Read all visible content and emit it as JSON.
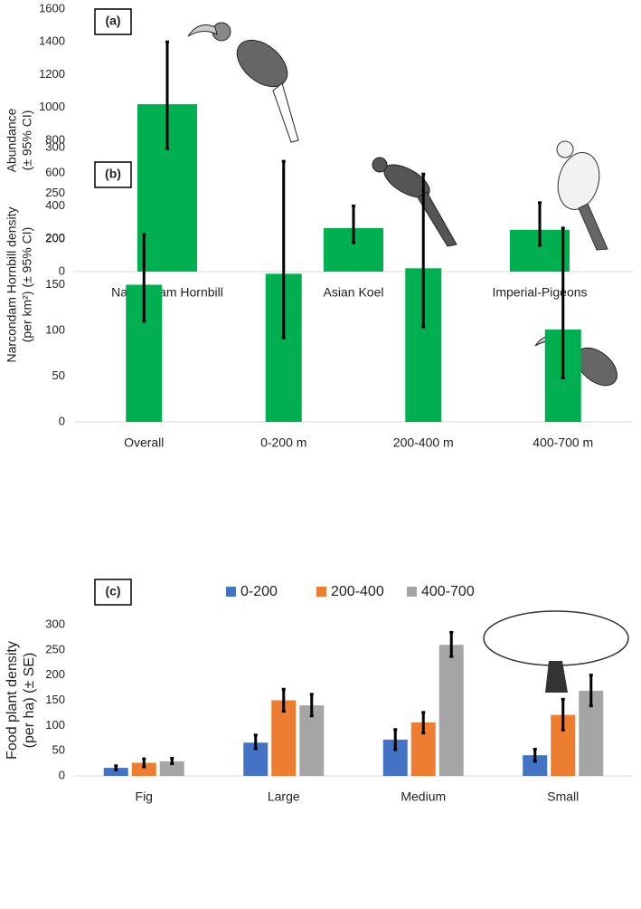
{
  "chart_data": [
    {
      "type": "bar",
      "panel": "(a)",
      "ylabel": [
        "Abundance",
        "(± 95% CI)"
      ],
      "categories": [
        "Narcondam Hornbill",
        "Asian Koel",
        "Imperial-Pigeons"
      ],
      "values": [
        1020,
        265,
        255
      ],
      "error_low": [
        750,
        175,
        160
      ],
      "error_high": [
        1400,
        400,
        420
      ],
      "color": "#00b050",
      "ylim": [
        0,
        1600
      ],
      "yticks": [
        0,
        200,
        400,
        600,
        800,
        1000,
        1200,
        1400,
        1600
      ]
    },
    {
      "type": "bar",
      "panel": "(b)",
      "ylabel": [
        "Narcondam Hornbill density",
        "(per km²) (± 95% CI)"
      ],
      "categories": [
        "Overall",
        "0-200 m",
        "200-400 m",
        "400-700 m"
      ],
      "values": [
        150,
        162,
        168,
        101
      ],
      "error_low": [
        110,
        92,
        104,
        48
      ],
      "error_high": [
        205,
        285,
        271,
        212
      ],
      "color": "#00b050",
      "ylim": [
        0,
        300
      ],
      "yticks": [
        0,
        50,
        100,
        150,
        200,
        250,
        300
      ]
    },
    {
      "type": "grouped_bar",
      "panel": "(c)",
      "ylabel": [
        "Food plant density",
        "(per ha) (± SE)"
      ],
      "categories": [
        "Fig",
        "Large",
        "Medium",
        "Small"
      ],
      "series": [
        {
          "name": "0-200",
          "color": "#4472c4",
          "values": [
            16,
            66,
            72,
            41
          ],
          "error_low": [
            12,
            54,
            52,
            29
          ],
          "error_high": [
            20,
            81,
            92,
            53
          ]
        },
        {
          "name": "200-400",
          "color": "#ed7d31",
          "values": [
            26,
            150,
            106,
            121
          ],
          "error_low": [
            18,
            128,
            85,
            91
          ],
          "error_high": [
            34,
            172,
            126,
            152
          ]
        },
        {
          "name": "400-700",
          "color": "#a5a5a5",
          "values": [
            29,
            140,
            260,
            169
          ],
          "error_low": [
            24,
            119,
            237,
            139
          ],
          "error_high": [
            35,
            162,
            285,
            200
          ]
        }
      ],
      "legend": "top",
      "ylim": [
        0,
        300
      ],
      "yticks": [
        0,
        50,
        100,
        150,
        200,
        250,
        300
      ]
    }
  ]
}
